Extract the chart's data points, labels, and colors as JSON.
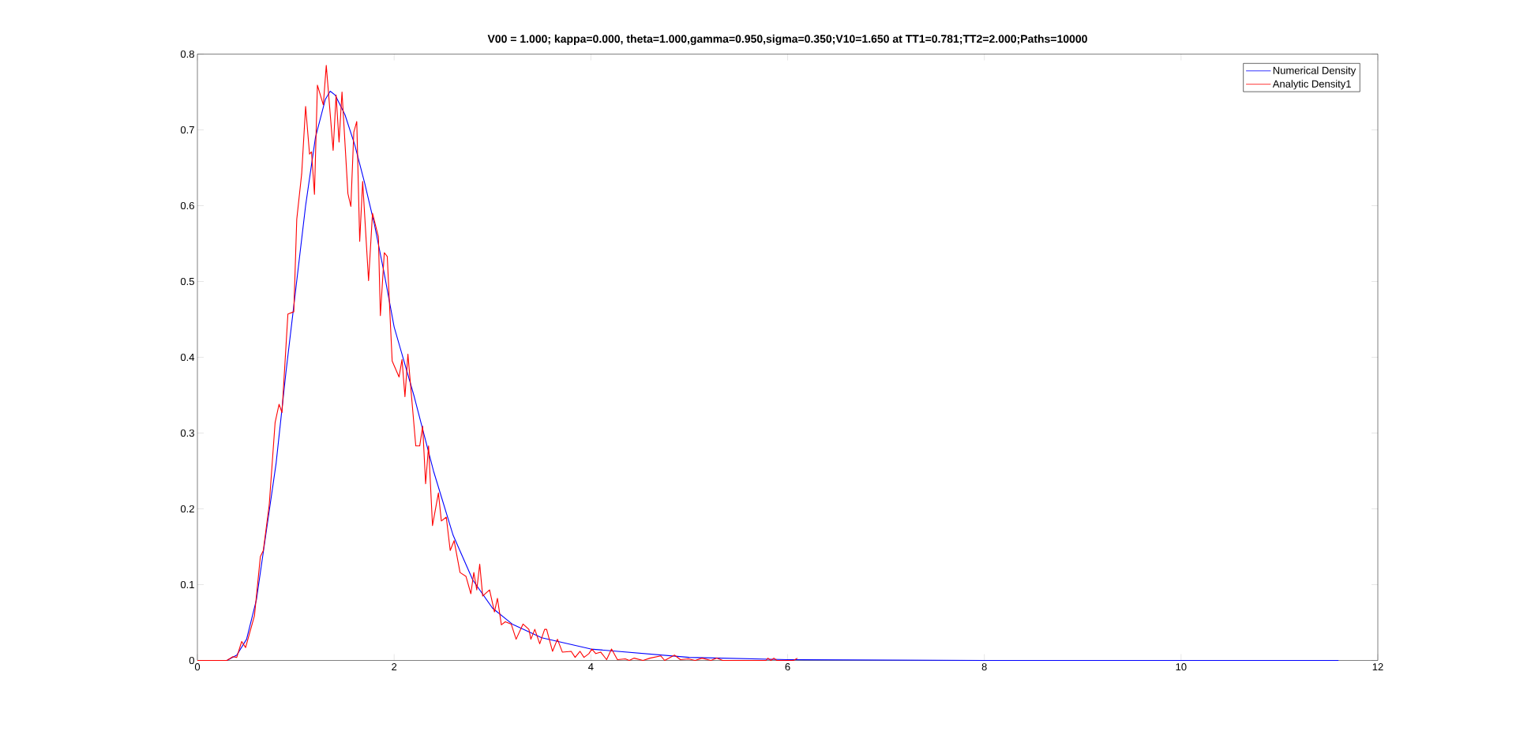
{
  "chart_data": {
    "type": "line",
    "title": "V00 = 1.000; kappa=0.000, theta=1.000,gamma=0.950,sigma=0.350;V10=1.650 at TT1=0.781;TT2=2.000;Paths=10000",
    "xlim": [
      0,
      12
    ],
    "ylim": [
      0,
      0.8
    ],
    "xticks": [
      0,
      2,
      4,
      6,
      8,
      10,
      12
    ],
    "yticks": [
      0,
      0.1,
      0.2,
      0.3,
      0.4,
      0.5,
      0.6,
      0.7,
      0.8
    ],
    "legend": "top right",
    "marker": "none",
    "series": [
      {
        "name": "Numerical Density",
        "color": "#0000ff",
        "x": [
          0.3,
          0.4,
          0.5,
          0.6,
          0.7,
          0.8,
          0.9,
          1.0,
          1.1,
          1.2,
          1.3,
          1.35,
          1.4,
          1.5,
          1.6,
          1.7,
          1.8,
          1.9,
          2.0,
          2.2,
          2.4,
          2.6,
          2.8,
          3.0,
          3.2,
          3.5,
          4.0,
          5.0,
          6.0,
          8.0,
          11.6
        ],
        "values": [
          0,
          0.007,
          0.028,
          0.08,
          0.17,
          0.26,
          0.38,
          0.49,
          0.6,
          0.69,
          0.74,
          0.751,
          0.746,
          0.72,
          0.68,
          0.63,
          0.575,
          0.51,
          0.44,
          0.35,
          0.25,
          0.165,
          0.106,
          0.069,
          0.048,
          0.03,
          0.015,
          0.004,
          0.001,
          0,
          0
        ]
      },
      {
        "name": "Analytic Density1",
        "color": "#ff0000",
        "x": [
          0,
          0.3,
          0.36,
          0.4,
          0.45,
          0.49,
          0.58,
          0.64,
          0.67,
          0.73,
          0.79,
          0.83,
          0.86,
          0.92,
          0.98,
          1.01,
          1.06,
          1.1,
          1.14,
          1.16,
          1.19,
          1.22,
          1.28,
          1.31,
          1.38,
          1.41,
          1.44,
          1.47,
          1.53,
          1.56,
          1.59,
          1.62,
          1.65,
          1.68,
          1.74,
          1.78,
          1.84,
          1.86,
          1.9,
          1.93,
          1.98,
          2.05,
          2.08,
          2.11,
          2.14,
          2.22,
          2.26,
          2.29,
          2.32,
          2.35,
          2.39,
          2.45,
          2.48,
          2.53,
          2.57,
          2.61,
          2.67,
          2.73,
          2.78,
          2.81,
          2.84,
          2.87,
          2.9,
          2.97,
          3.02,
          3.05,
          3.09,
          3.13,
          3.19,
          3.24,
          3.31,
          3.37,
          3.39,
          3.43,
          3.48,
          3.53,
          3.55,
          3.61,
          3.66,
          3.71,
          3.8,
          3.84,
          3.89,
          3.93,
          3.98,
          4.01,
          4.05,
          4.1,
          4.16,
          4.21,
          4.27,
          4.35,
          4.39,
          4.44,
          4.53,
          4.6,
          4.71,
          4.75,
          4.85,
          4.91,
          4.99,
          5.06,
          5.13,
          5.22,
          5.28,
          5.34,
          5.78,
          5.8,
          5.83,
          5.86,
          5.89,
          6.06,
          6.1
        ],
        "values": [
          0,
          0,
          0.005,
          0.004,
          0.025,
          0.017,
          0.059,
          0.137,
          0.145,
          0.205,
          0.314,
          0.338,
          0.327,
          0.457,
          0.46,
          0.582,
          0.642,
          0.731,
          0.668,
          0.671,
          0.615,
          0.759,
          0.733,
          0.785,
          0.673,
          0.746,
          0.684,
          0.75,
          0.616,
          0.599,
          0.697,
          0.711,
          0.553,
          0.632,
          0.501,
          0.59,
          0.559,
          0.455,
          0.538,
          0.533,
          0.395,
          0.374,
          0.397,
          0.348,
          0.404,
          0.283,
          0.283,
          0.309,
          0.233,
          0.283,
          0.178,
          0.221,
          0.184,
          0.189,
          0.145,
          0.158,
          0.116,
          0.111,
          0.088,
          0.116,
          0.093,
          0.127,
          0.085,
          0.093,
          0.064,
          0.082,
          0.047,
          0.051,
          0.048,
          0.028,
          0.048,
          0.041,
          0.028,
          0.041,
          0.022,
          0.041,
          0.041,
          0.012,
          0.028,
          0.011,
          0.012,
          0.004,
          0.012,
          0.004,
          0.009,
          0.015,
          0.009,
          0.011,
          0.001,
          0.015,
          0.001,
          0.002,
          0,
          0.003,
          0,
          0.003,
          0.006,
          0,
          0.007,
          0.001,
          0.002,
          0,
          0.003,
          0,
          0.003,
          0,
          0,
          0.003,
          0,
          0.003,
          0,
          0,
          0.003
        ]
      }
    ]
  }
}
